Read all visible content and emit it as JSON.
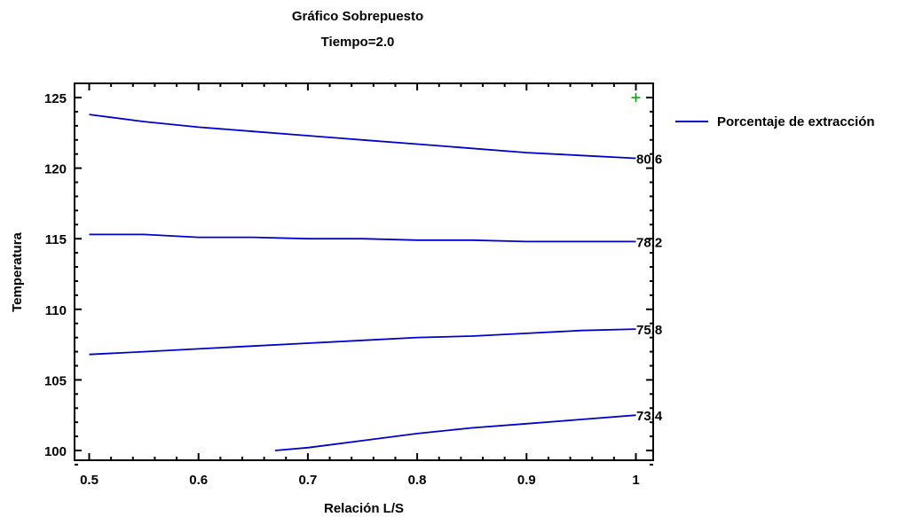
{
  "chart_data": {
    "type": "line",
    "title": "Gráfico Sobrepuesto",
    "subtitle": "Tiempo=2.0",
    "xlabel": "Relación L/S",
    "ylabel": "Temperatura",
    "xlim": [
      0.5,
      1.0
    ],
    "ylim": [
      99.0,
      125.5
    ],
    "xticks": [
      "0.5",
      "0.6",
      "0.7",
      "0.8",
      "0.9",
      "1"
    ],
    "yticks": [
      "100",
      "105",
      "110",
      "115",
      "120",
      "125"
    ],
    "grid": false,
    "legend": {
      "position": "top-right",
      "entries": [
        "Porcentaje de extracción"
      ]
    },
    "color": "#0000d0",
    "marker_color": "#009900",
    "marker": {
      "x": 1.0,
      "y": 125.0
    },
    "series": [
      {
        "label": "80.6",
        "x": [
          0.5,
          0.55,
          0.6,
          0.65,
          0.7,
          0.75,
          0.8,
          0.85,
          0.9,
          0.95,
          1.0
        ],
        "y": [
          123.8,
          123.3,
          122.9,
          122.6,
          122.3,
          122.0,
          121.7,
          121.4,
          121.1,
          120.9,
          120.7
        ]
      },
      {
        "label": "78.2",
        "x": [
          0.5,
          0.55,
          0.6,
          0.65,
          0.7,
          0.75,
          0.8,
          0.85,
          0.9,
          0.95,
          1.0
        ],
        "y": [
          115.3,
          115.3,
          115.1,
          115.1,
          115.0,
          115.0,
          114.9,
          114.9,
          114.8,
          114.8,
          114.8
        ]
      },
      {
        "label": "75.8",
        "x": [
          0.5,
          0.55,
          0.6,
          0.65,
          0.7,
          0.75,
          0.8,
          0.85,
          0.9,
          0.95,
          1.0
        ],
        "y": [
          106.8,
          107.0,
          107.2,
          107.4,
          107.6,
          107.8,
          108.0,
          108.1,
          108.3,
          108.5,
          108.6
        ]
      },
      {
        "label": "73.4",
        "x": [
          0.67,
          0.7,
          0.75,
          0.8,
          0.85,
          0.9,
          0.95,
          1.0
        ],
        "y": [
          100.0,
          100.2,
          100.7,
          101.2,
          101.6,
          101.9,
          102.2,
          102.5
        ]
      }
    ]
  }
}
